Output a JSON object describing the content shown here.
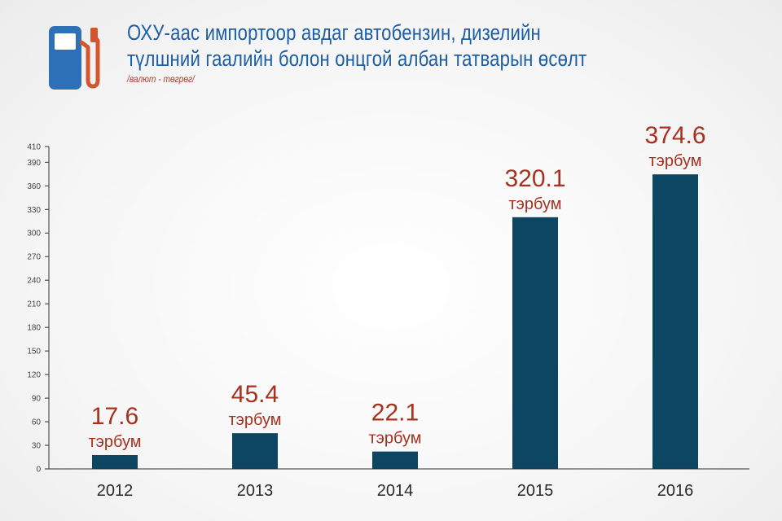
{
  "header": {
    "title_line1": "ОХУ-аас импортоор авдаг автобензин, дизелийн",
    "title_line2": "түлшний гаалийн болон онцгой албан татварын өсөлт",
    "subtitle": "/валют - төгрөг/"
  },
  "icon": "fuel-pump-icon",
  "colors": {
    "title": "#1d5fa6",
    "bar": "#0d4662",
    "label": "#a8301f",
    "icon_body": "#2e70b8",
    "icon_nozzle": "#d4552e"
  },
  "chart_data": {
    "type": "bar",
    "categories": [
      "2012",
      "2013",
      "2014",
      "2015",
      "2016"
    ],
    "values": [
      17.6,
      45.4,
      22.1,
      320.1,
      374.6
    ],
    "value_labels": [
      "17.6",
      "45.4",
      "22.1",
      "320.1",
      "374.6"
    ],
    "unit_label": "тэрбум",
    "title": "ОХУ-аас импортоор авдаг автобензин, дизелийн түлшний гаалийн болон онцгой албан татварын өсөлт",
    "subtitle": "/валют - төгрөг/",
    "xlabel": "",
    "ylabel": "",
    "ylim": [
      0,
      410
    ],
    "yticks": [
      0,
      30,
      60,
      90,
      120,
      150,
      180,
      210,
      240,
      270,
      300,
      330,
      360,
      390,
      410
    ],
    "grid": false,
    "legend": "none"
  }
}
